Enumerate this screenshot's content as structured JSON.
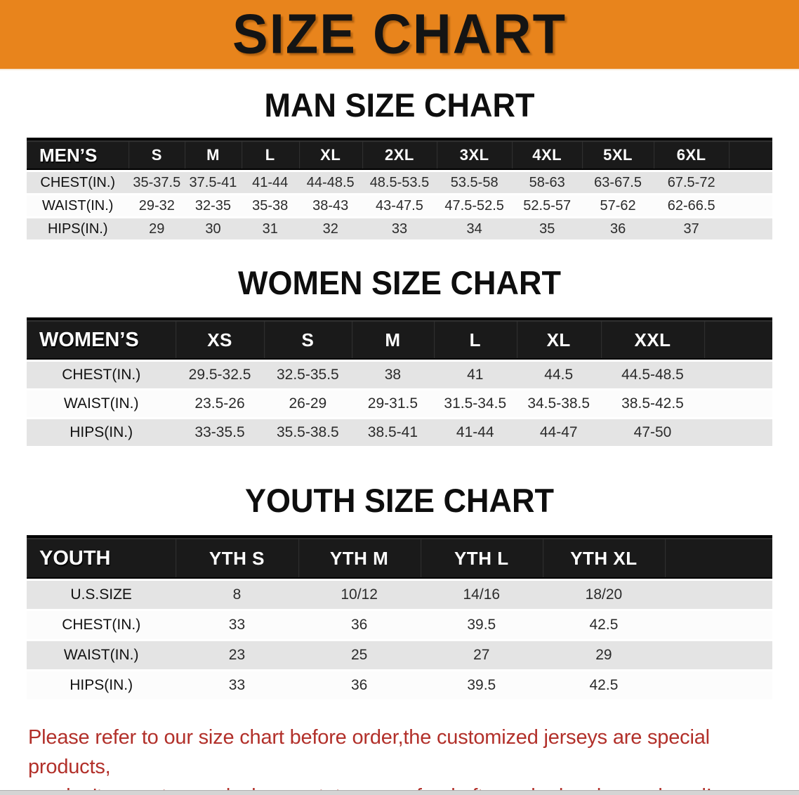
{
  "theme": {
    "banner_bg": "#E8841C",
    "table_header_bg": "#1A1A1A",
    "row_stripe": "#E4E4E4",
    "disclaimer_color": "#B2302A"
  },
  "banner": {
    "title": "SIZE CHART"
  },
  "sections": [
    {
      "id": "men",
      "heading": "MAN SIZE CHART",
      "label": "MEN’S",
      "sizes": [
        "S",
        "M",
        "L",
        "XL",
        "2XL",
        "3XL",
        "4XL",
        "5XL",
        "6XL"
      ],
      "rows": [
        {
          "label": "CHEST(IN.)",
          "values": [
            "35-37.5",
            "37.5-41",
            "41-44",
            "44-48.5",
            "48.5-53.5",
            "53.5-58",
            "58-63",
            "63-67.5",
            "67.5-72"
          ]
        },
        {
          "label": "WAIST(IN.)",
          "values": [
            "29-32",
            "32-35",
            "35-38",
            "38-43",
            "43-47.5",
            "47.5-52.5",
            "52.5-57",
            "57-62",
            "62-66.5"
          ]
        },
        {
          "label": "HIPS(IN.)",
          "values": [
            "29",
            "30",
            "31",
            "32",
            "33",
            "34",
            "35",
            "36",
            "37"
          ]
        }
      ]
    },
    {
      "id": "women",
      "heading": "WOMEN SIZE CHART",
      "label": "WOMEN’S",
      "sizes": [
        "XS",
        "S",
        "M",
        "L",
        "XL",
        "XXL"
      ],
      "rows": [
        {
          "label": "CHEST(IN.)",
          "values": [
            "29.5-32.5",
            "32.5-35.5",
            "38",
            "41",
            "44.5",
            "44.5-48.5"
          ]
        },
        {
          "label": "WAIST(IN.)",
          "values": [
            "23.5-26",
            "26-29",
            "29-31.5",
            "31.5-34.5",
            "34.5-38.5",
            "38.5-42.5"
          ]
        },
        {
          "label": "HIPS(IN.)",
          "values": [
            "33-35.5",
            "35.5-38.5",
            "38.5-41",
            "41-44",
            "44-47",
            "47-50"
          ]
        }
      ]
    },
    {
      "id": "youth",
      "heading": "YOUTH SIZE CHART",
      "label": "YOUTH",
      "sizes": [
        "YTH S",
        "YTH M",
        "YTH L",
        "YTH XL"
      ],
      "rows": [
        {
          "label": "U.S.SIZE",
          "values": [
            "8",
            "10/12",
            "14/16",
            "18/20"
          ]
        },
        {
          "label": "CHEST(IN.)",
          "values": [
            "33",
            "36",
            "39.5",
            "42.5"
          ]
        },
        {
          "label": "WAIST(IN.)",
          "values": [
            "23",
            "25",
            "27",
            "29"
          ]
        },
        {
          "label": "HIPS(IN.)",
          "values": [
            "33",
            "36",
            "39.5",
            "42.5"
          ]
        }
      ]
    }
  ],
  "footer": {
    "lines": [
      "Please refer to our size chart before order,the customized jerseys are special products,",
      "we don't accept cancel, change, teturn or refund after order has been placed!"
    ]
  }
}
